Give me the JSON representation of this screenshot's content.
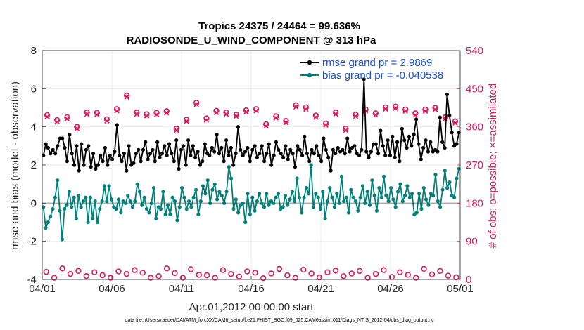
{
  "chart_data": {
    "type": "line",
    "title": "Tropics 24375 / 24464 = 99.636%",
    "subtitle": "RADIOSONDE_U_WIND_COMPONENT @ 313 hPa",
    "xlabel": "Apr.01,2012 00:00:00 start",
    "ylabel": "rmse and bias (model - observation)",
    "y2label": "# of obs: o=possible; ×=assimilated",
    "footer": "data file: /Users/raeder/DAI/ATM_forcXX/CAM6_setup/f.e21.FHIST_BGC.f09_025.CAM6assim.011/Diags_NTrS_2012-04/obs_diag_output.nc",
    "xlim": [
      0,
      30
    ],
    "ylim": [
      -4,
      8
    ],
    "y2lim": [
      0,
      540
    ],
    "yticks": [
      "-4",
      "-2",
      "0",
      "2",
      "4",
      "6",
      "8"
    ],
    "y2ticks": [
      "0",
      "90",
      "180",
      "270",
      "360",
      "450",
      "540"
    ],
    "xticks": [
      {
        "value": 0,
        "label": "04/01"
      },
      {
        "value": 5,
        "label": "04/06"
      },
      {
        "value": 10,
        "label": "04/11"
      },
      {
        "value": 15,
        "label": "04/16"
      },
      {
        "value": 20,
        "label": "04/21"
      },
      {
        "value": 25,
        "label": "04/26"
      },
      {
        "value": 30,
        "label": "05/01"
      }
    ],
    "legend_position": "top-right",
    "series": [
      {
        "name": "rmse grand pr = 2.9869",
        "color": "#000000",
        "axis": "left",
        "values": [
          2.5,
          3.1,
          2.9,
          2.6,
          2.8,
          2.6,
          3.0,
          3.4,
          3.4,
          2.9,
          2.2,
          3.6,
          2.6,
          2.0,
          3.0,
          1.7,
          3.1,
          2.0,
          2.8,
          3.0,
          1.9,
          2.6,
          1.8,
          2.0,
          2.5,
          2.2,
          2.9,
          2.0,
          2.5,
          2.3,
          2.7,
          4.1,
          2.5,
          2.2,
          2.6,
          1.7,
          3.0,
          2.0,
          2.1,
          2.6,
          2.8,
          2.2,
          2.8,
          3.2,
          2.3,
          2.6,
          2.8,
          2.2,
          3.2,
          2.4,
          2.6,
          3.0,
          2.5,
          3.1,
          2.6,
          2.2,
          3.3,
          1.8,
          2.8,
          3.0,
          2.0,
          3.3,
          2.5,
          3.0,
          2.4,
          2.7,
          2.0,
          2.2,
          3.1,
          2.6,
          2.5,
          2.9,
          2.7,
          3.6,
          2.6,
          2.9,
          2.2,
          3.3,
          2.5,
          2.9,
          2.0,
          2.6,
          4.0,
          2.8,
          2.5,
          2.7,
          2.9,
          2.2,
          2.8,
          3.0,
          2.4,
          2.6,
          3.0,
          2.2,
          2.6,
          3.1,
          2.0,
          2.5,
          3.2,
          2.8,
          2.6,
          2.4,
          3.0,
          2.3,
          2.8,
          2.6,
          1.9,
          3.0,
          2.8,
          2.5,
          3.5,
          2.6,
          2.2,
          2.8,
          2.6,
          3.0,
          2.5,
          2.2,
          3.4,
          2.8,
          2.4,
          1.7,
          2.8,
          2.6,
          2.9,
          2.7,
          2.8,
          2.6,
          3.4,
          2.7,
          2.9,
          3.0,
          2.6,
          2.5,
          2.8,
          6.5,
          2.7,
          2.4,
          2.7,
          3.1,
          3.1,
          2.6,
          3.8,
          3.0,
          2.5,
          3.3,
          2.5,
          3.5,
          2.4,
          3.2,
          2.2,
          3.9,
          3.3,
          2.9,
          3.5,
          3.0,
          3.6,
          4.4,
          3.1,
          2.3,
          2.9,
          3.3,
          2.7,
          3.2,
          2.7,
          2.8,
          2.7,
          4.5,
          3.2,
          2.9,
          5.7,
          4.6,
          3.7,
          3.0,
          3.1,
          3.7
        ],
        "pointsPerDay": 6
      },
      {
        "name": "bias grand pr = -0.040538",
        "color": "#00807a",
        "axis": "left",
        "values": [
          -0.2,
          -1.3,
          -1.0,
          -0.7,
          -0.3,
          0.3,
          1.2,
          -0.4,
          -1.9,
          -0.3,
          -0.1,
          0.6,
          -0.2,
          0.3,
          -0.8,
          0.4,
          -0.2,
          0.1,
          0.3,
          -1.0,
          0.3,
          -0.8,
          0.1,
          -1.0,
          -0.3,
          0.1,
          0.9,
          0.1,
          0.9,
          0.2,
          -0.2,
          -0.3,
          0.2,
          -0.5,
          0.1,
          0.0,
          0.4,
          0.1,
          -0.2,
          0.1,
          1.0,
          0.6,
          -0.1,
          0.3,
          -0.3,
          -0.5,
          0.0,
          0.8,
          -0.8,
          -0.2,
          -0.3,
          0.6,
          -0.6,
          -0.1,
          -0.6,
          0.3,
          0.1,
          -0.9,
          -0.2,
          0.8,
          0.3,
          -0.3,
          0.1,
          -0.2,
          0.3,
          0.7,
          -0.6,
          0.1,
          0.9,
          0.5,
          1.2,
          0.0,
          0.7,
          1.0,
          0.2,
          0.6,
          0.4,
          0.0,
          0.6,
          1.9,
          1.3,
          -0.3,
          0.2,
          -0.5,
          -0.1,
          0.0,
          -1.0,
          0.5,
          -0.6,
          0.3,
          -0.4,
          0.1,
          0.5,
          0.0,
          -0.2,
          0.5,
          -0.1,
          0.1,
          0.0,
          0.3,
          0.5,
          -0.3,
          -0.2,
          0.4,
          -0.1,
          0.2,
          0.6,
          0.1,
          1.3,
          0.3,
          -0.5,
          0.3,
          0.8,
          0.5,
          2.0,
          -0.2,
          0.5,
          0.3,
          -0.3,
          0.6,
          -0.8,
          0.1,
          0.8,
          0.3,
          -0.2,
          0.5,
          0.0,
          1.4,
          0.1,
          0.3,
          -0.5,
          0.7,
          0.3,
          0.1,
          -0.4,
          0.3,
          0.9,
          0.0,
          0.6,
          -0.1,
          1.2,
          0.4,
          -0.4,
          0.8,
          0.3,
          1.4,
          0.4,
          0.1,
          0.8,
          0.2,
          -0.2,
          0.6,
          1.0,
          0.1,
          0.4,
          0.9,
          0.3,
          0.5,
          -0.6,
          -0.5,
          0.5,
          -0.3,
          0.8,
          0.2,
          -0.1,
          0.5,
          0.4,
          1.5,
          0.1,
          -0.2,
          0.7,
          1.7,
          0.8,
          1.1,
          0.4,
          0.3,
          1.3,
          1.8
        ],
        "pointsPerDay": 6
      },
      {
        "name": "obs possible",
        "color": "#d81b60",
        "axis": "right",
        "marker": "o",
        "values": [
          388,
          376,
          383,
          360,
          394,
          393,
          378,
          402,
          434,
          394,
          390,
          393,
          397,
          356,
          377,
          417,
          380,
          398,
          394,
          389,
          399,
          402,
          366,
          385,
          374,
          411,
          406,
          387,
          368,
          394,
          356,
          389,
          401,
          392,
          406,
          408,
          401,
          392,
          401,
          405,
          383,
          373
        ],
        "pointsPerDay": 1.4
      },
      {
        "name": "obs assimilated",
        "color": "#d81b60",
        "axis": "right",
        "marker": "x",
        "values": [
          384,
          372,
          379,
          356,
          390,
          389,
          374,
          398,
          430,
          390,
          386,
          389,
          393,
          352,
          373,
          413,
          376,
          394,
          390,
          385,
          395,
          398,
          362,
          381,
          370,
          407,
          402,
          383,
          364,
          390,
          352,
          385,
          397,
          388,
          402,
          404,
          397,
          388,
          397,
          401,
          379,
          369
        ],
        "pointsPerDay": 1.4
      },
      {
        "name": "obs lower band possible",
        "color": "#d81b60",
        "axis": "right",
        "marker": "o",
        "values": [
          18,
          4,
          26,
          13,
          20,
          8,
          17,
          10,
          4,
          19,
          13,
          22,
          16,
          4,
          8,
          26,
          15,
          4,
          24,
          11,
          10,
          4,
          22,
          13,
          7,
          19,
          16,
          3,
          14,
          25,
          10,
          4,
          23,
          14,
          5,
          17,
          21,
          8,
          14,
          20,
          4,
          13,
          22,
          6,
          17,
          11,
          4,
          25,
          12,
          20,
          9,
          5
        ],
        "pointsPerDay": 1.73
      }
    ]
  },
  "legend": {
    "rmse_label": "rmse grand pr = 2.9869",
    "bias_label": "bias grand pr = -0.040538"
  },
  "colors": {
    "rmse": "#000000",
    "bias": "#00807a",
    "obs": "#d81b60",
    "legend_text": "#1a4fd8",
    "zero_line": "#b0b0b0"
  }
}
